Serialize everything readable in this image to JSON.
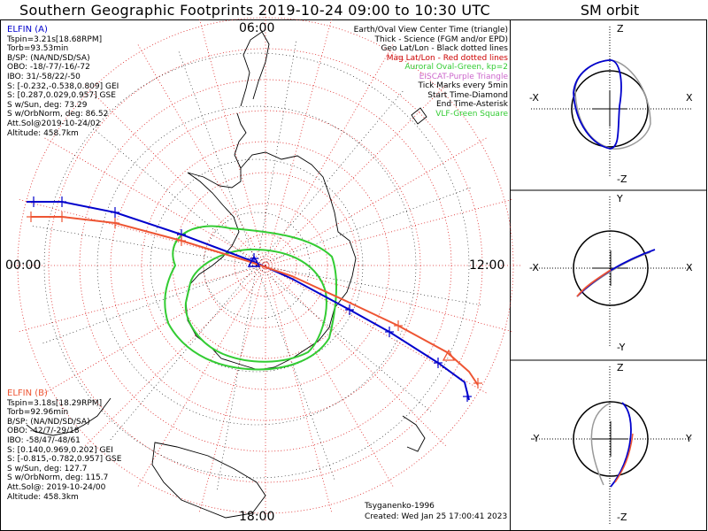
{
  "title": "Southern Geographic Footprints 2019-10-24 09:00 to 10:30 UTC",
  "sm_title": "SM orbit",
  "colors": {
    "elfin_a": "#0000cc",
    "elfin_b": "#ee5533",
    "oval": "#33cc33",
    "grid": "#dd2222",
    "mag": "#cc0000",
    "eiscat": "#cc66cc"
  },
  "hour_labels": {
    "top": "06:00",
    "left": "00:00",
    "right": "12:00",
    "bottom": "18:00"
  },
  "elfin_a": {
    "name": "ELFIN (A)",
    "lines": [
      "Tspin=3.21s[18.68RPM]",
      "Torb=93.53min",
      "B/SP: (NA/ND/SD/SA)",
      "OBO: -18/-77/-16/-72",
      "IBO: 31/-58/22/-50",
      "S: [-0.232,-0.538,0.809] GEI",
      "S: [0.287,0.029,0.957] GSE",
      "S w/Sun, deg: 73.29",
      "S w/OrbNorm, deg: 86.52",
      "Att.Sol@2019-10-24/02",
      "Altitude: 458.7km"
    ]
  },
  "elfin_b": {
    "name": "ELFIN (B)",
    "lines": [
      "Tspin=3.18s[18.29RPM]",
      "Torb=92.96min",
      "B/SP: (NA/ND/SD/SA)",
      "OBO: -42/7/-29/18",
      "IBO: -58/47/-48/61",
      "S: [0.140,0.969,0.202] GEI",
      "S: [-0.815,-0.782,0.957] GSE",
      "S w/Sun, deg: 127.7",
      "S w/OrbNorm, deg: 115.7",
      "Att.Sol@: 2019-10-24/00",
      "Altitude: 458.3km"
    ]
  },
  "legend": [
    {
      "text": "Earth/Oval View Center Time (triangle)",
      "color": "#000000"
    },
    {
      "text": "Thick - Science (FGM and/or EPD)",
      "color": "#000000"
    },
    {
      "text": "Geo Lat/Lon - Black dotted lines",
      "color": "#000000"
    },
    {
      "text": "Mag Lat/Lon - Red dotted lines",
      "color": "#cc0000"
    },
    {
      "text": "Auroral Oval-Green, kp=2",
      "color": "#33cc33"
    },
    {
      "text": "EISCAT-Purple Triangle",
      "color": "#cc66cc"
    },
    {
      "text": "Tick Marks every 5min",
      "color": "#000000"
    },
    {
      "text": "Start Time-Diamond",
      "color": "#000000"
    },
    {
      "text": "End Time-Asterisk",
      "color": "#000000"
    },
    {
      "text": "VLF-Green Square",
      "color": "#33cc33"
    }
  ],
  "credit": {
    "model": "Tsyganenko-1996",
    "created": "Created: Wed Jan 25 17:00:41 2023"
  },
  "sm_panels": [
    {
      "top": "Z",
      "bottom": "-Z",
      "left": "-X",
      "right": "X"
    },
    {
      "top": "Y",
      "bottom": "-Y",
      "left": "-X",
      "right": "X"
    },
    {
      "top": "Z",
      "bottom": "-Z",
      "left": "-Y",
      "right": "Y"
    }
  ]
}
